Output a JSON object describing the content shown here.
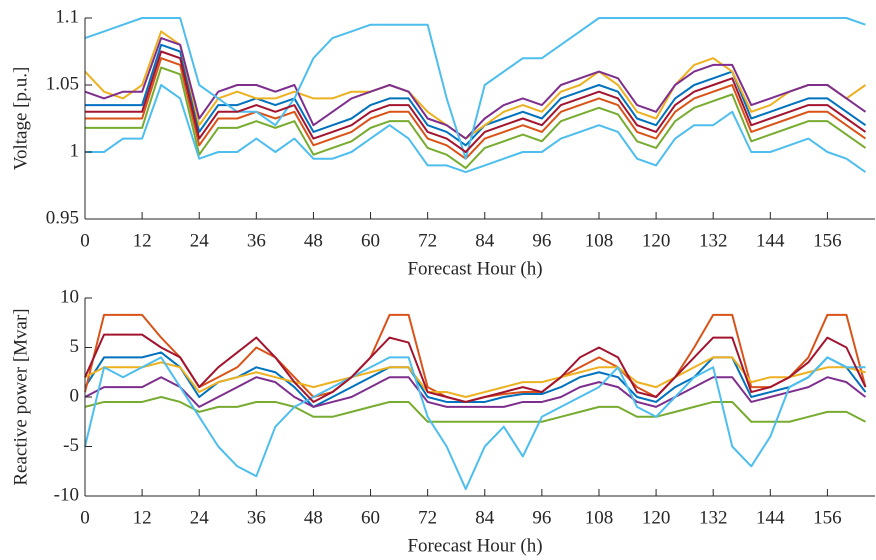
{
  "chart_data": [
    {
      "type": "line",
      "xlabel": "Forecast Hour (h)",
      "ylabel": "Voltage [p.u.]",
      "xlim": [
        0,
        166
      ],
      "ylim": [
        0.95,
        1.1
      ],
      "xticks": [
        0,
        12,
        24,
        36,
        48,
        60,
        72,
        84,
        96,
        108,
        120,
        132,
        144,
        156
      ],
      "yticks": [
        0.95,
        1,
        1.05,
        1.1
      ],
      "x": [
        0,
        4,
        8,
        12,
        16,
        20,
        24,
        28,
        32,
        36,
        40,
        44,
        48,
        52,
        56,
        60,
        64,
        68,
        72,
        76,
        80,
        84,
        88,
        92,
        96,
        100,
        104,
        108,
        112,
        116,
        120,
        124,
        128,
        132,
        136,
        140,
        144,
        148,
        152,
        156,
        160,
        164
      ],
      "series": [
        {
          "color": "#0072BD",
          "values": [
            1.035,
            1.035,
            1.035,
            1.035,
            1.08,
            1.075,
            1.015,
            1.035,
            1.035,
            1.04,
            1.035,
            1.04,
            1.015,
            1.02,
            1.025,
            1.035,
            1.04,
            1.04,
            1.02,
            1.015,
            1.005,
            1.02,
            1.025,
            1.03,
            1.025,
            1.04,
            1.045,
            1.05,
            1.045,
            1.025,
            1.02,
            1.04,
            1.05,
            1.055,
            1.06,
            1.025,
            1.03,
            1.035,
            1.04,
            1.04,
            1.03,
            1.02
          ]
        },
        {
          "color": "#D95319",
          "values": [
            1.025,
            1.025,
            1.025,
            1.025,
            1.07,
            1.065,
            1.005,
            1.025,
            1.025,
            1.03,
            1.025,
            1.03,
            1.005,
            1.01,
            1.015,
            1.025,
            1.03,
            1.03,
            1.01,
            1.005,
            0.995,
            1.01,
            1.015,
            1.02,
            1.015,
            1.03,
            1.035,
            1.04,
            1.035,
            1.015,
            1.01,
            1.03,
            1.04,
            1.045,
            1.05,
            1.015,
            1.02,
            1.025,
            1.03,
            1.03,
            1.02,
            1.01
          ]
        },
        {
          "color": "#EDB120",
          "values": [
            1.06,
            1.045,
            1.04,
            1.05,
            1.09,
            1.08,
            1.02,
            1.04,
            1.045,
            1.04,
            1.04,
            1.045,
            1.04,
            1.04,
            1.045,
            1.045,
            1.05,
            1.045,
            1.03,
            1.02,
            1.01,
            1.02,
            1.03,
            1.035,
            1.03,
            1.045,
            1.05,
            1.06,
            1.05,
            1.03,
            1.025,
            1.05,
            1.065,
            1.07,
            1.06,
            1.03,
            1.035,
            1.045,
            1.05,
            1.05,
            1.04,
            1.05
          ]
        },
        {
          "color": "#7E2F8E",
          "values": [
            1.045,
            1.04,
            1.045,
            1.045,
            1.085,
            1.08,
            1.025,
            1.045,
            1.05,
            1.05,
            1.045,
            1.05,
            1.02,
            1.03,
            1.04,
            1.045,
            1.05,
            1.045,
            1.025,
            1.02,
            1.01,
            1.025,
            1.035,
            1.04,
            1.035,
            1.05,
            1.055,
            1.06,
            1.055,
            1.035,
            1.03,
            1.05,
            1.06,
            1.065,
            1.065,
            1.035,
            1.04,
            1.045,
            1.05,
            1.05,
            1.04,
            1.03
          ]
        },
        {
          "color": "#77AC30",
          "values": [
            1.018,
            1.018,
            1.018,
            1.018,
            1.063,
            1.058,
            0.998,
            1.018,
            1.018,
            1.023,
            1.018,
            1.023,
            0.998,
            1.003,
            1.008,
            1.018,
            1.023,
            1.023,
            1.003,
            0.998,
            0.988,
            1.003,
            1.008,
            1.013,
            1.008,
            1.023,
            1.028,
            1.033,
            1.028,
            1.008,
            1.003,
            1.023,
            1.033,
            1.038,
            1.043,
            1.008,
            1.013,
            1.018,
            1.023,
            1.023,
            1.013,
            1.003
          ]
        },
        {
          "color": "#4DBEEE",
          "values": [
            1.085,
            1.09,
            1.095,
            1.1,
            1.1,
            1.1,
            1.05,
            1.04,
            1.03,
            1.03,
            1.02,
            1.04,
            1.07,
            1.085,
            1.09,
            1.095,
            1.095,
            1.095,
            1.095,
            1.04,
            0.995,
            1.05,
            1.06,
            1.07,
            1.07,
            1.08,
            1.09,
            1.1,
            1.1,
            1.1,
            1.1,
            1.1,
            1.1,
            1.1,
            1.1,
            1.1,
            1.1,
            1.1,
            1.1,
            1.1,
            1.1,
            1.095
          ]
        },
        {
          "color": "#A2142F",
          "values": [
            1.03,
            1.03,
            1.03,
            1.03,
            1.075,
            1.07,
            1.01,
            1.03,
            1.03,
            1.035,
            1.03,
            1.035,
            1.01,
            1.015,
            1.02,
            1.03,
            1.035,
            1.035,
            1.015,
            1.01,
            1.0,
            1.015,
            1.02,
            1.025,
            1.02,
            1.035,
            1.04,
            1.045,
            1.04,
            1.02,
            1.015,
            1.035,
            1.045,
            1.05,
            1.055,
            1.02,
            1.025,
            1.03,
            1.035,
            1.035,
            1.025,
            1.015
          ]
        },
        {
          "color": "#4DBEEE",
          "values": [
            1.0,
            1.0,
            1.01,
            1.01,
            1.05,
            1.04,
            0.995,
            1.0,
            1.0,
            1.01,
            1.0,
            1.01,
            0.995,
            0.995,
            1.0,
            1.01,
            1.02,
            1.01,
            0.99,
            0.99,
            0.985,
            0.99,
            0.995,
            1.0,
            1.0,
            1.01,
            1.015,
            1.02,
            1.015,
            0.995,
            0.99,
            1.01,
            1.02,
            1.02,
            1.03,
            1.0,
            1.0,
            1.005,
            1.01,
            1.0,
            0.995,
            0.985
          ]
        }
      ]
    },
    {
      "type": "line",
      "xlabel": "Forecast Hour (h)",
      "ylabel": "Reactive power [Mvar]",
      "xlim": [
        0,
        166
      ],
      "ylim": [
        -10,
        10
      ],
      "xticks": [
        0,
        12,
        24,
        36,
        48,
        60,
        72,
        84,
        96,
        108,
        120,
        132,
        144,
        156
      ],
      "yticks": [
        -10,
        -5,
        0,
        5,
        10
      ],
      "x": [
        0,
        4,
        8,
        12,
        16,
        20,
        24,
        28,
        32,
        36,
        40,
        44,
        48,
        52,
        56,
        60,
        64,
        68,
        72,
        76,
        80,
        84,
        88,
        92,
        96,
        100,
        104,
        108,
        112,
        116,
        120,
        124,
        128,
        132,
        136,
        140,
        144,
        148,
        152,
        156,
        160,
        164
      ],
      "series": [
        {
          "color": "#0072BD",
          "values": [
            1,
            4,
            4,
            4,
            4.5,
            3,
            0,
            1.5,
            2,
            3,
            2.5,
            1,
            -1,
            0,
            1,
            2,
            3,
            3,
            0,
            -0.5,
            -0.5,
            -0.5,
            0,
            0.3,
            0.3,
            1,
            2,
            2.5,
            2,
            0,
            -0.5,
            1,
            2,
            4,
            4,
            0,
            0.5,
            1,
            2,
            4,
            3,
            0.5
          ]
        },
        {
          "color": "#D95319",
          "values": [
            0.5,
            8.3,
            8.3,
            8.3,
            6,
            4,
            1,
            2,
            3,
            5,
            4,
            2,
            0,
            0.5,
            2,
            4,
            8.3,
            8.3,
            1,
            0,
            -0.5,
            0,
            0.3,
            0.5,
            0.5,
            2,
            3,
            4,
            3,
            1,
            0,
            2,
            5,
            8.3,
            8.3,
            1,
            1,
            2,
            4,
            8.3,
            8.3,
            1
          ]
        },
        {
          "color": "#EDB120",
          "values": [
            2,
            3,
            3,
            3,
            3.5,
            3,
            0.5,
            1.5,
            2,
            2.5,
            2,
            1.5,
            1,
            1.5,
            2,
            2.5,
            3,
            3,
            0.5,
            0.5,
            0,
            0.5,
            1,
            1.5,
            1.5,
            2,
            2.5,
            3,
            3,
            1.5,
            1,
            2,
            3,
            4,
            4,
            1.5,
            2,
            2,
            2.5,
            3,
            3,
            2.5
          ]
        },
        {
          "color": "#7E2F8E",
          "values": [
            0,
            1,
            1,
            1,
            2,
            1,
            -1,
            0,
            1,
            2,
            1.5,
            0,
            -1,
            -0.5,
            0,
            1,
            2,
            2,
            -0.5,
            -1,
            -1,
            -1,
            -1,
            -0.5,
            -0.5,
            0,
            1,
            1.5,
            1,
            -0.5,
            -1,
            0,
            1,
            2,
            2,
            -0.5,
            0,
            0.5,
            1,
            2,
            1.5,
            0
          ]
        },
        {
          "color": "#77AC30",
          "values": [
            -1,
            -0.5,
            -0.5,
            -0.5,
            0,
            -0.5,
            -1.5,
            -1,
            -1,
            -0.5,
            -0.5,
            -1,
            -2,
            -2,
            -1.5,
            -1,
            -0.5,
            -0.5,
            -2.5,
            -2.5,
            -2.5,
            -2.5,
            -2.5,
            -2.5,
            -2.5,
            -2,
            -1.5,
            -1,
            -1,
            -2,
            -2,
            -1.5,
            -1,
            -0.5,
            -0.5,
            -2.5,
            -2.5,
            -2.5,
            -2,
            -1.5,
            -1.5,
            -2.5
          ]
        },
        {
          "color": "#4DBEEE",
          "values": [
            -5,
            3,
            2,
            3,
            4,
            1,
            -2,
            -5,
            -7,
            -8,
            -3,
            -1,
            0,
            1,
            2,
            3,
            4,
            4,
            -2,
            -5,
            -9.3,
            -5,
            -3,
            -6,
            -2,
            -1,
            0,
            1,
            3,
            -1,
            -2,
            0,
            2,
            3,
            -5,
            -7,
            -4,
            1,
            2,
            4,
            3,
            3
          ]
        },
        {
          "color": "#A2142F",
          "values": [
            2,
            6.3,
            6.3,
            6.3,
            5,
            4,
            1,
            3,
            4.5,
            6,
            4,
            1.5,
            -0.5,
            0.5,
            2,
            4,
            6,
            5.5,
            0.5,
            0,
            -0.5,
            0,
            0.5,
            1,
            0.5,
            2,
            4,
            5,
            4,
            0.5,
            0,
            2,
            4,
            6,
            6,
            0.5,
            1,
            2,
            3.5,
            6,
            5,
            1
          ]
        }
      ]
    }
  ]
}
